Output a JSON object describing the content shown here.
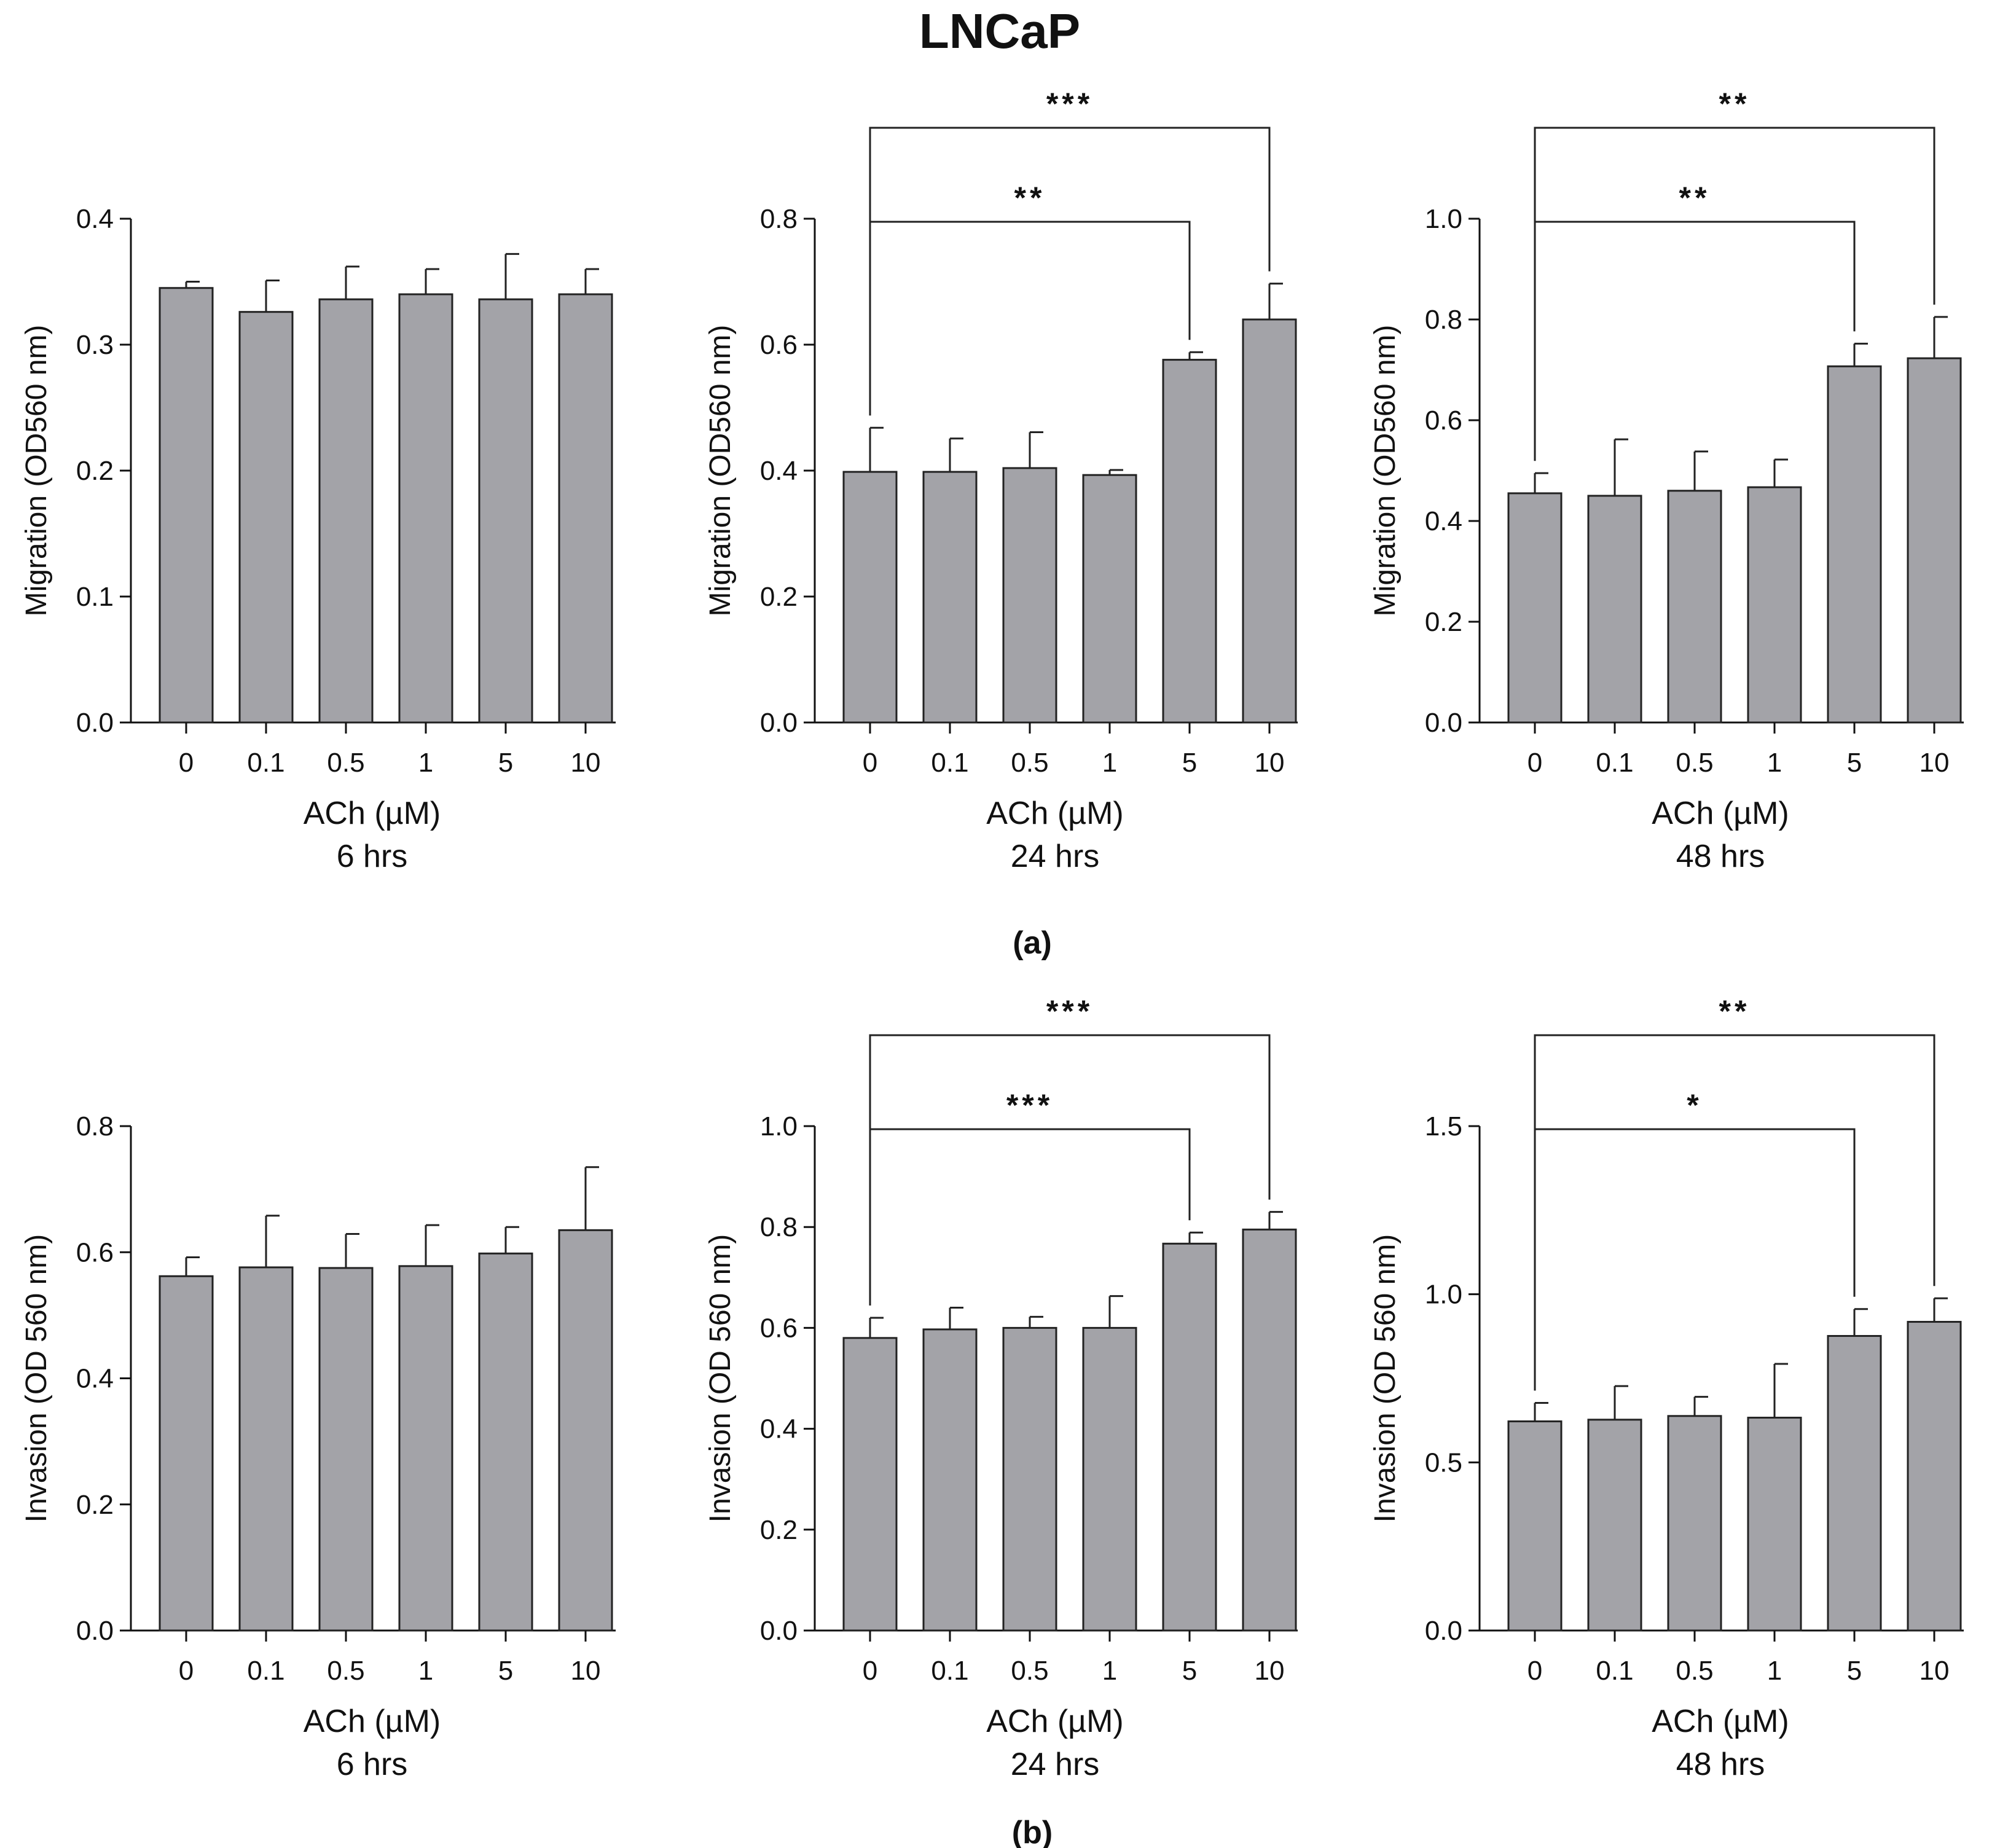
{
  "figure_title": "LNCaP",
  "panel_labels": {
    "a": "(a)",
    "b": "(b)"
  },
  "chart_data": [
    {
      "type": "bar",
      "id": "a1",
      "categories": [
        "0",
        "0.1",
        "0.5",
        "1",
        "5",
        "10"
      ],
      "values": [
        0.345,
        0.326,
        0.336,
        0.34,
        0.336,
        0.34
      ],
      "errors": [
        0.005,
        0.025,
        0.026,
        0.02,
        0.036,
        0.02
      ],
      "ylim": [
        0,
        0.4
      ],
      "yticks": [
        "0.0",
        "0.1",
        "0.2",
        "0.3",
        "0.4"
      ],
      "ylabel": "Migration (OD560 nm)",
      "xlabel": "ACh (µM)",
      "timepoint": "6 hrs",
      "significance": []
    },
    {
      "type": "bar",
      "id": "a2",
      "categories": [
        "0",
        "0.1",
        "0.5",
        "1",
        "5",
        "10"
      ],
      "values": [
        0.398,
        0.398,
        0.404,
        0.393,
        0.576,
        0.64
      ],
      "errors": [
        0.07,
        0.053,
        0.057,
        0.008,
        0.012,
        0.057
      ],
      "ylim": [
        0,
        0.8
      ],
      "yticks": [
        "0.0",
        "0.2",
        "0.4",
        "0.6",
        "0.8"
      ],
      "ylabel": "Migration (OD560 nm)",
      "xlabel": "ACh (µM)",
      "timepoint": "24 hrs",
      "significance": [
        {
          "from": 0,
          "to": 4,
          "label": "**"
        },
        {
          "from": 0,
          "to": 5,
          "label": "***"
        }
      ]
    },
    {
      "type": "bar",
      "id": "a3",
      "categories": [
        "0",
        "0.1",
        "0.5",
        "1",
        "5",
        "10"
      ],
      "values": [
        0.455,
        0.45,
        0.46,
        0.467,
        0.707,
        0.723
      ],
      "errors": [
        0.04,
        0.112,
        0.078,
        0.055,
        0.045,
        0.082
      ],
      "ylim": [
        0,
        1.0
      ],
      "yticks": [
        "0.0",
        "0.2",
        "0.4",
        "0.6",
        "0.8",
        "1.0"
      ],
      "ylabel": "Migration (OD560 nm)",
      "xlabel": "ACh (µM)",
      "timepoint": "48 hrs",
      "significance": [
        {
          "from": 0,
          "to": 4,
          "label": "**"
        },
        {
          "from": 0,
          "to": 5,
          "label": "**"
        }
      ]
    },
    {
      "type": "bar",
      "id": "b1",
      "categories": [
        "0",
        "0.1",
        "0.5",
        "1",
        "5",
        "10"
      ],
      "values": [
        0.562,
        0.576,
        0.575,
        0.578,
        0.598,
        0.635
      ],
      "errors": [
        0.03,
        0.082,
        0.054,
        0.065,
        0.042,
        0.1
      ],
      "ylim": [
        0,
        0.8
      ],
      "yticks": [
        "0.0",
        "0.2",
        "0.4",
        "0.6",
        "0.8"
      ],
      "ylabel": "Invasion (OD 560 nm)",
      "xlabel": "ACh (µM)",
      "timepoint": "6 hrs",
      "significance": []
    },
    {
      "type": "bar",
      "id": "b2",
      "categories": [
        "0",
        "0.1",
        "0.5",
        "1",
        "5",
        "10"
      ],
      "values": [
        0.58,
        0.597,
        0.6,
        0.6,
        0.767,
        0.795
      ],
      "errors": [
        0.04,
        0.043,
        0.022,
        0.063,
        0.022,
        0.035
      ],
      "ylim": [
        0,
        1.0
      ],
      "yticks": [
        "0.0",
        "0.2",
        "0.4",
        "0.6",
        "0.8",
        "1.0"
      ],
      "ylabel": "Invasion (OD 560 nm)",
      "xlabel": "ACh (µM)",
      "timepoint": "24 hrs",
      "significance": [
        {
          "from": 0,
          "to": 4,
          "label": "***"
        },
        {
          "from": 0,
          "to": 5,
          "label": "***"
        }
      ]
    },
    {
      "type": "bar",
      "id": "b3",
      "categories": [
        "0",
        "0.1",
        "0.5",
        "1",
        "5",
        "10"
      ],
      "values": [
        0.622,
        0.627,
        0.638,
        0.633,
        0.876,
        0.918
      ],
      "errors": [
        0.055,
        0.1,
        0.057,
        0.16,
        0.08,
        0.07
      ],
      "ylim": [
        0,
        1.5
      ],
      "yticks": [
        "0.0",
        "0.5",
        "1.0",
        "1.5"
      ],
      "ylabel": "Invasion (OD 560 nm)",
      "xlabel": "ACh (µM)",
      "timepoint": "48 hrs",
      "significance": [
        {
          "from": 0,
          "to": 4,
          "label": "*"
        },
        {
          "from": 0,
          "to": 5,
          "label": "**"
        }
      ]
    }
  ]
}
